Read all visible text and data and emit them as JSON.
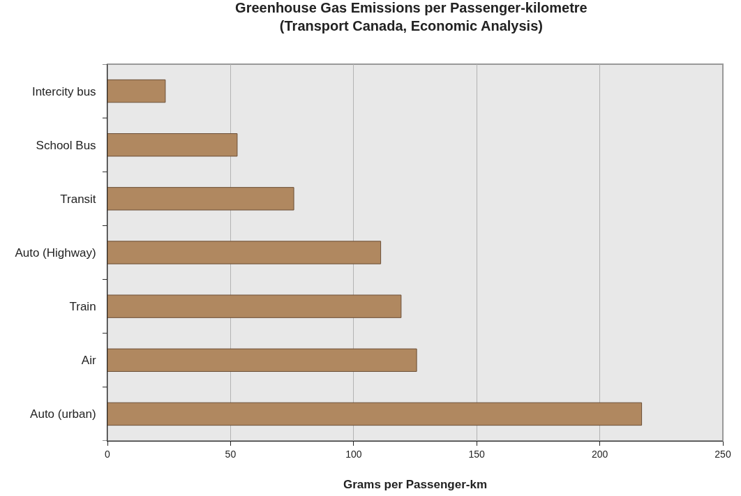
{
  "chart_data": {
    "type": "bar",
    "orientation": "horizontal",
    "title": "Greenhouse Gas Emissions per Passenger-kilometre\n(Transport Canada, Economic Analysis)",
    "xlabel": "Grams per Passenger-km",
    "categories": [
      "Intercity bus",
      "School Bus",
      "Transit",
      "Auto (Highway)",
      "Train",
      "Air",
      "Auto (urban)"
    ],
    "values": [
      23.5,
      52.7,
      75.7,
      111,
      119.3,
      125.6,
      217
    ],
    "color": "#b08860",
    "xlim": [
      0,
      250
    ],
    "xticks": [
      0,
      50,
      100,
      150,
      200,
      250
    ],
    "grid": "x",
    "legend": false
  }
}
